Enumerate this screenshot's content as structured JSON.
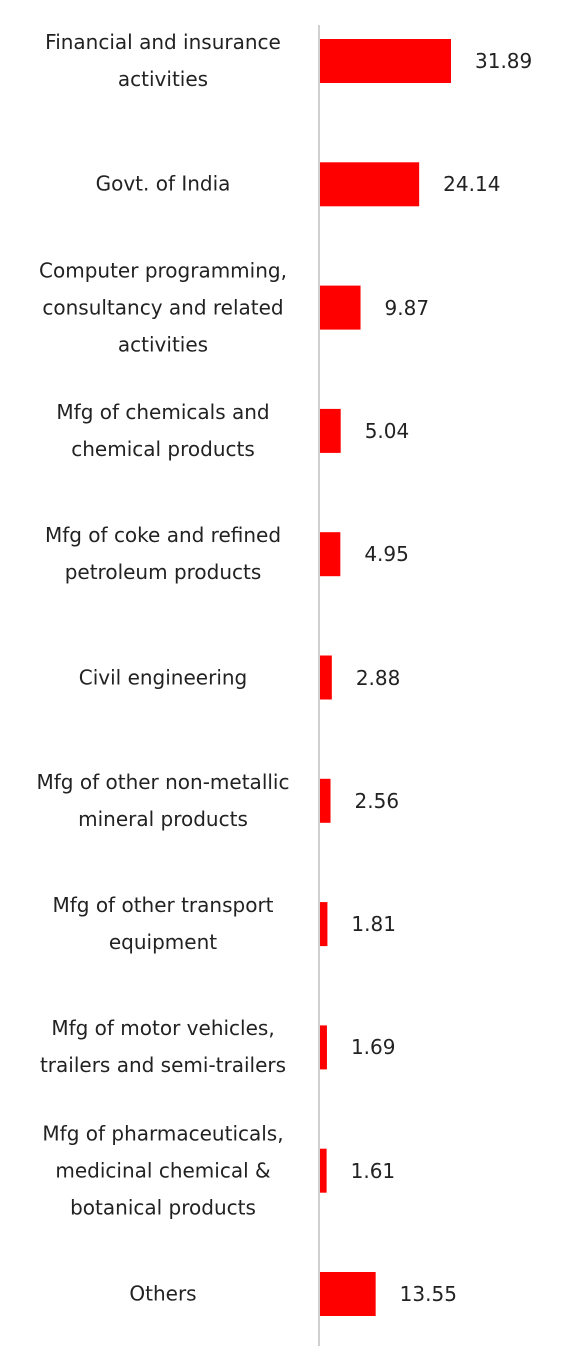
{
  "chart_data": {
    "type": "bar",
    "orientation": "horizontal",
    "color": "#ff0000",
    "categories": [
      "Financial and insurance activities",
      "Govt. of India",
      "Computer programming, consultancy and related activities",
      "Mfg of chemicals and chemical products",
      "Mfg of coke and refined petroleum products",
      "Civil engineering",
      "Mfg of other non-metallic mineral products",
      "Mfg of other transport equipment",
      "Mfg of motor vehicles, trailers and semi-trailers",
      "Mfg of pharmaceuticals, medicinal chemical & botanical products",
      "Others"
    ],
    "values": [
      31.89,
      24.14,
      9.87,
      5.04,
      4.95,
      2.88,
      2.56,
      1.81,
      1.69,
      1.61,
      13.55
    ]
  }
}
